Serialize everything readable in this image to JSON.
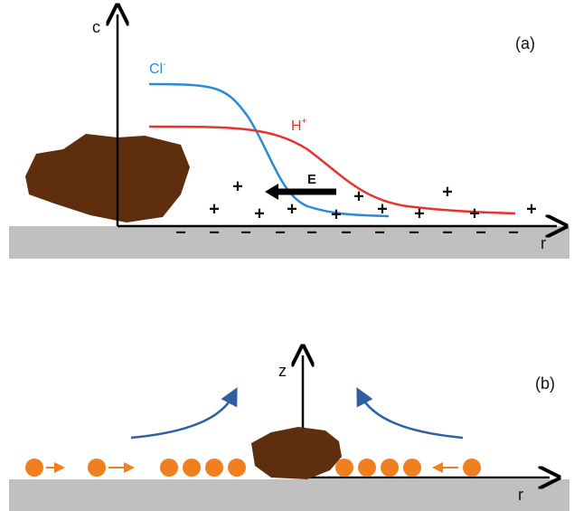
{
  "panel_a": {
    "axis_y": "c",
    "axis_x": "r",
    "tag": "(a)",
    "chloride": {
      "symbol": "Cl",
      "charge": "-"
    },
    "proton": {
      "symbol": "H",
      "charge": "+"
    },
    "field": "E",
    "plus_signs": [
      "+",
      "+",
      "+",
      "+",
      "+",
      "+",
      "+",
      "+",
      "+",
      "+",
      "+"
    ],
    "minus_signs": [
      "−",
      "−",
      "−",
      "−",
      "−",
      "−",
      "−",
      "−",
      "−",
      "−",
      "−"
    ]
  },
  "panel_b": {
    "axis_y": "z",
    "axis_x": "r",
    "tag": "(b)"
  }
}
